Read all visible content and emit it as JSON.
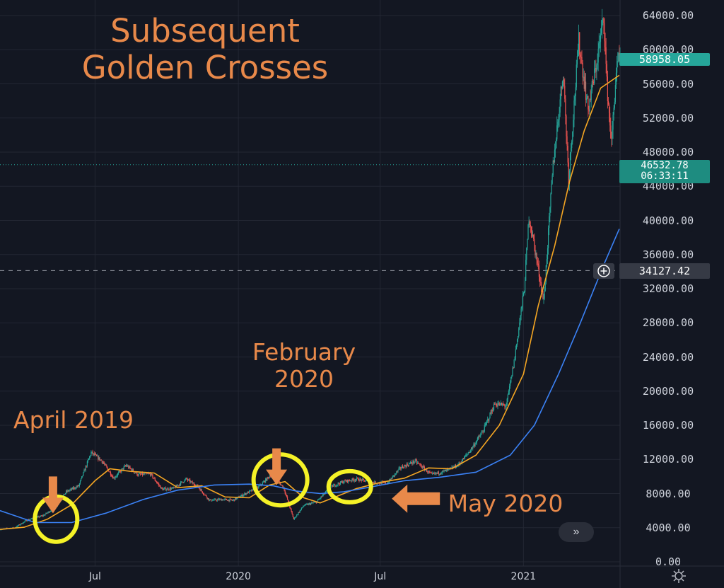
{
  "annotations": {
    "title_lines": [
      "Subsequent",
      "Golden Crosses"
    ],
    "april": "April 2019",
    "february_lines": [
      "February",
      "2020"
    ],
    "may": "May 2020"
  },
  "price_labels": {
    "last": "58958.05",
    "mark_price": "46532.78",
    "countdown": "06:33:11",
    "crosshair": "34127.42"
  },
  "colors": {
    "background": "#131722",
    "annotation": "#e8894a",
    "ma_short": "#f5a623",
    "ma_long": "#3b82f6",
    "circle": "#f5f227",
    "up_candle": "#26a69a",
    "down_candle": "#ef5350"
  },
  "chart_data": {
    "type": "line",
    "description_series_note": "BTC daily candles with 50-day and 200-day moving averages (price in USD)",
    "x_ticks": [
      "Jul",
      "2020",
      "Jul",
      "2021"
    ],
    "y_ticks": [
      "64000.00",
      "60000.00",
      "56000.00",
      "52000.00",
      "48000.00",
      "44000.00",
      "40000.00",
      "36000.00",
      "32000.00",
      "28000.00",
      "24000.00",
      "20000.00",
      "16000.00",
      "12000.00",
      "8000.00",
      "4000.00",
      "0.00"
    ],
    "ylim": [
      0,
      66000
    ],
    "xlim": [
      "2019-03-01",
      "2021-05-05"
    ],
    "grid": true,
    "price": [
      [
        "2019-03-01",
        3800
      ],
      [
        "2019-03-20",
        4000
      ],
      [
        "2019-04-05",
        4900
      ],
      [
        "2019-04-25",
        5400
      ],
      [
        "2019-05-10",
        6300
      ],
      [
        "2019-05-25",
        8200
      ],
      [
        "2019-06-10",
        8900
      ],
      [
        "2019-06-26",
        12800
      ],
      [
        "2019-07-10",
        11800
      ],
      [
        "2019-07-25",
        9800
      ],
      [
        "2019-08-10",
        11300
      ],
      [
        "2019-08-25",
        10200
      ],
      [
        "2019-09-10",
        10300
      ],
      [
        "2019-09-25",
        8500
      ],
      [
        "2019-10-10",
        8600
      ],
      [
        "2019-10-26",
        9700
      ],
      [
        "2019-11-10",
        8800
      ],
      [
        "2019-11-25",
        7200
      ],
      [
        "2019-12-10",
        7300
      ],
      [
        "2019-12-25",
        7200
      ],
      [
        "2020-01-10",
        8000
      ],
      [
        "2020-01-25",
        8600
      ],
      [
        "2020-02-13",
        10300
      ],
      [
        "2020-02-28",
        8700
      ],
      [
        "2020-03-12",
        5000
      ],
      [
        "2020-03-25",
        6600
      ],
      [
        "2020-04-10",
        7000
      ],
      [
        "2020-04-29",
        8800
      ],
      [
        "2020-05-15",
        9400
      ],
      [
        "2020-06-01",
        9700
      ],
      [
        "2020-06-20",
        9300
      ],
      [
        "2020-07-10",
        9200
      ],
      [
        "2020-07-27",
        11000
      ],
      [
        "2020-08-15",
        11800
      ],
      [
        "2020-09-05",
        10200
      ],
      [
        "2020-09-25",
        10700
      ],
      [
        "2020-10-10",
        11400
      ],
      [
        "2020-10-25",
        13100
      ],
      [
        "2020-11-10",
        15300
      ],
      [
        "2020-11-25",
        18500
      ],
      [
        "2020-12-10",
        18300
      ],
      [
        "2020-12-20",
        23500
      ],
      [
        "2021-01-02",
        32000
      ],
      [
        "2021-01-08",
        40500
      ],
      [
        "2021-01-15",
        37000
      ],
      [
        "2021-01-27",
        30500
      ],
      [
        "2021-02-08",
        46500
      ],
      [
        "2021-02-21",
        57500
      ],
      [
        "2021-02-28",
        45000
      ],
      [
        "2021-03-13",
        61000
      ],
      [
        "2021-03-25",
        53000
      ],
      [
        "2021-04-05",
        58500
      ],
      [
        "2021-04-14",
        64000
      ],
      [
        "2021-04-18",
        56000
      ],
      [
        "2021-04-24",
        49000
      ],
      [
        "2021-04-30",
        57500
      ],
      [
        "2021-05-04",
        58958
      ]
    ],
    "series": [
      {
        "values": [
          [
            "2019-03-01",
            3800
          ],
          [
            "2019-04-01",
            4050
          ],
          [
            "2019-05-01",
            5000
          ],
          [
            "2019-06-01",
            6700
          ],
          [
            "2019-07-01",
            9500
          ],
          [
            "2019-07-20",
            10900
          ],
          [
            "2019-08-15",
            10600
          ],
          [
            "2019-09-15",
            10400
          ],
          [
            "2019-10-15",
            8700
          ],
          [
            "2019-11-15",
            8900
          ],
          [
            "2019-12-15",
            7600
          ],
          [
            "2020-01-15",
            7500
          ],
          [
            "2020-02-10",
            9000
          ],
          [
            "2020-03-01",
            9400
          ],
          [
            "2020-03-25",
            7500
          ],
          [
            "2020-04-15",
            6900
          ],
          [
            "2020-05-10",
            7800
          ],
          [
            "2020-06-01",
            8600
          ],
          [
            "2020-07-01",
            9300
          ],
          [
            "2020-08-01",
            9800
          ],
          [
            "2020-09-01",
            11000
          ],
          [
            "2020-10-01",
            10900
          ],
          [
            "2020-11-01",
            12500
          ],
          [
            "2020-12-01",
            16000
          ],
          [
            "2021-01-01",
            22000
          ],
          [
            "2021-01-20",
            30000
          ],
          [
            "2021-02-10",
            37000
          ],
          [
            "2021-03-01",
            44500
          ],
          [
            "2021-03-20",
            50500
          ],
          [
            "2021-04-10",
            55500
          ],
          [
            "2021-05-04",
            57000
          ]
        ]
      },
      {
        "values": [
          [
            "2019-03-01",
            6000
          ],
          [
            "2019-04-15",
            4600
          ],
          [
            "2019-06-01",
            4600
          ],
          [
            "2019-07-15",
            5700
          ],
          [
            "2019-09-01",
            7300
          ],
          [
            "2019-10-15",
            8400
          ],
          [
            "2019-12-01",
            9000
          ],
          [
            "2020-01-15",
            9100
          ],
          [
            "2020-02-15",
            8900
          ],
          [
            "2020-03-15",
            8300
          ],
          [
            "2020-04-15",
            8000
          ],
          [
            "2020-05-15",
            8200
          ],
          [
            "2020-06-15",
            8700
          ],
          [
            "2020-08-01",
            9500
          ],
          [
            "2020-09-15",
            9900
          ],
          [
            "2020-11-01",
            10500
          ],
          [
            "2020-12-15",
            12500
          ],
          [
            "2021-01-15",
            16000
          ],
          [
            "2021-02-15",
            22000
          ],
          [
            "2021-03-15",
            28000
          ],
          [
            "2021-04-15",
            35000
          ],
          [
            "2021-05-04",
            39000
          ]
        ]
      }
    ],
    "circles": [
      {
        "date": "2019-05-12",
        "price": 5000
      },
      {
        "date": "2020-02-24",
        "price": 9600
      },
      {
        "date": "2020-05-23",
        "price": 8800
      }
    ],
    "arrows": [
      {
        "direction": "down",
        "date": "2019-05-08",
        "price": 10000
      },
      {
        "direction": "down",
        "date": "2020-02-19",
        "price": 13300
      },
      {
        "direction": "left",
        "date": "2020-07-16",
        "price": 7400
      }
    ],
    "reference_lines": {
      "mark_price": 46532.78,
      "crosshair": 34127.42
    }
  },
  "axis": {
    "y_ticks": [
      "64000.00",
      "60000.00",
      "56000.00",
      "52000.00",
      "48000.00",
      "44000.00",
      "40000.00",
      "36000.00",
      "32000.00",
      "28000.00",
      "24000.00",
      "20000.00",
      "16000.00",
      "12000.00",
      "8000.00",
      "4000.00",
      "0.00"
    ],
    "x_ticks": [
      "Jul",
      "2020",
      "Jul",
      "2021"
    ]
  },
  "controls": {
    "scroll_icon": "double-chevron-right-icon",
    "crosshair_icon": "plus-circle-icon",
    "settings_icon": "gear-icon"
  }
}
